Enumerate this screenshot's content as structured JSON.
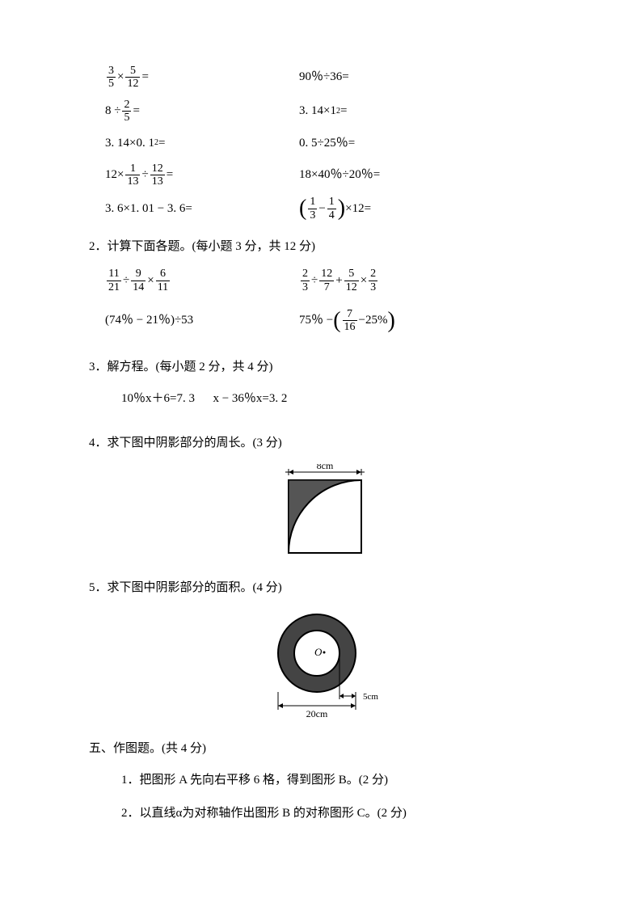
{
  "q1": {
    "rows": [
      {
        "left_parts": [
          "frac:3/5",
          " × ",
          "frac:5/12",
          " ="
        ],
        "right_parts": [
          "90％÷36="
        ]
      },
      {
        "left_parts": [
          "8 ÷ ",
          "frac:2/5",
          " ="
        ],
        "right_parts": [
          "3. 14×1",
          "sup:2",
          "="
        ]
      },
      {
        "left_parts": [
          "3. 14×0. 1",
          "sup:2",
          "="
        ],
        "right_parts": [
          "0. 5÷25％="
        ]
      },
      {
        "left_parts": [
          "12× ",
          "frac:1/13",
          " ÷ ",
          "frac:12/13",
          " ="
        ],
        "right_parts": [
          "18×40％÷20％="
        ]
      },
      {
        "left_parts": [
          "3. 6×1. 01 − 3. 6="
        ],
        "right_parts": [
          "parenfrac:1/3 − 1/4",
          " ×12="
        ]
      }
    ]
  },
  "q2": {
    "title": "2．计算下面各题。(每小题 3 分，共 12 分)",
    "rows": [
      {
        "left_parts": [
          "frac:11/21",
          " ÷ ",
          "frac:9/14",
          " × ",
          "frac:6/11"
        ],
        "right_parts": [
          "frac:2/3",
          " ÷ ",
          "frac:12/7",
          " + ",
          "frac:5/12",
          " × ",
          "frac:2/3"
        ]
      },
      {
        "left_parts": [
          "(74％ − 21％)÷53"
        ],
        "right_parts": [
          "75％ − ",
          "parenfrac:7/16 − 25%"
        ]
      }
    ]
  },
  "q3": {
    "title": "3．解方程。(每小题 2 分，共 4 分)",
    "line": "10％x＋6=7. 3      x − 36％x=3. 2"
  },
  "q4": {
    "title": "4．求下图中阴影部分的周长。(3 分)",
    "label": "8cm"
  },
  "q5": {
    "title": "5．求下图中阴影部分的面积。(4 分)",
    "center": "O",
    "width_label": "20cm",
    "gap_label": "5cm"
  },
  "section5": {
    "title": "五、作图题。(共 4 分)",
    "sub1": "1．把图形 A 先向右平移 6 格，得到图形 B。(2 分)",
    "sub2": "2．以直线α为对称轴作出图形 B 的对称图形 C。(2 分)"
  }
}
